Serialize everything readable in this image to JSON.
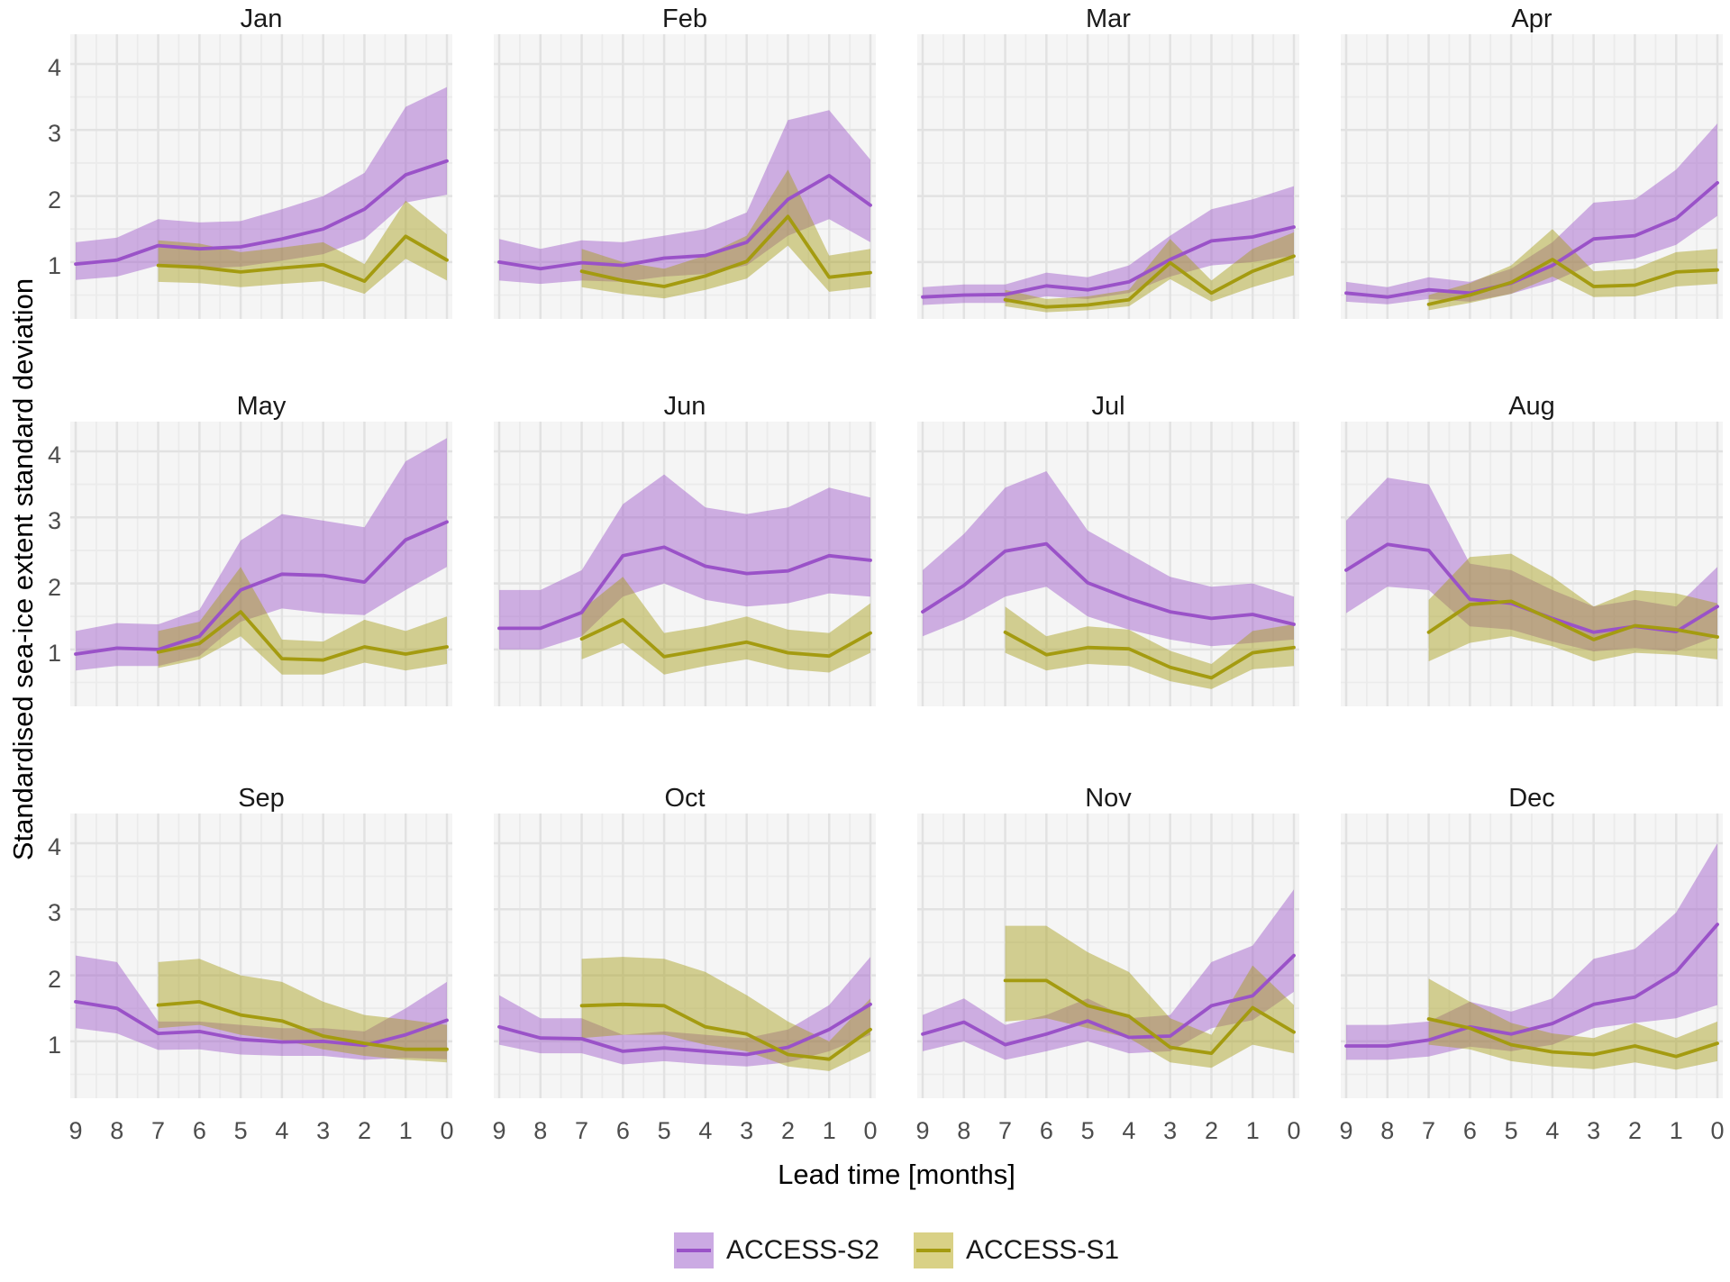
{
  "figure": {
    "y_axis_title": "Standardised sea-ice extent standard deviation",
    "x_axis_title": "Lead time [months]",
    "legend": [
      {
        "label": "ACCESS-S2",
        "series_key": "s2"
      },
      {
        "label": "ACCESS-S1",
        "series_key": "s1"
      }
    ]
  },
  "colors": {
    "s2_line": "#9a52c8",
    "s1_line": "#a49b10",
    "ribbon_opacity": 0.44,
    "panel_bg": "#f5f5f5",
    "grid_major": "#e2e2e2",
    "grid_minor": "#ebebeb",
    "tick_label": "#4d4d4d",
    "facet_title": "#1a1a1a",
    "legend_swatch_s2": "#cbaae3",
    "legend_swatch_s1": "#d9d186"
  },
  "chart_data": {
    "type": "line",
    "title": "",
    "xlabel": "Lead time [months]",
    "ylabel": "Standardised sea-ice extent standard deviation",
    "legend_position": "bottom",
    "grid": "major and minor, light gray on pale panel",
    "x_axis_reversed": true,
    "facets": [
      "Jan",
      "Feb",
      "Mar",
      "Apr",
      "May",
      "Jun",
      "Jul",
      "Aug",
      "Sep",
      "Oct",
      "Nov",
      "Dec"
    ],
    "xticks": [
      9,
      8,
      7,
      6,
      5,
      4,
      3,
      2,
      1,
      0
    ],
    "yticks": [
      1,
      2,
      3,
      4
    ],
    "ylim": [
      0.14,
      4.45
    ],
    "series": [
      {
        "key": "s2",
        "name": "ACCESS-S2",
        "leads": [
          9,
          8,
          7,
          6,
          5,
          4,
          3,
          2,
          1,
          0
        ],
        "style": "line with shaded ribbon"
      },
      {
        "key": "s1",
        "name": "ACCESS-S1",
        "leads": [
          7,
          6,
          5,
          4,
          3,
          2,
          1,
          0
        ],
        "style": "line with shaded ribbon"
      }
    ],
    "panels": {
      "Jan": {
        "s2": {
          "mean": [
            0.97,
            1.03,
            1.25,
            1.2,
            1.23,
            1.35,
            1.5,
            1.8,
            2.32,
            2.53
          ],
          "lo": [
            0.73,
            0.78,
            0.95,
            0.9,
            0.93,
            1.02,
            1.12,
            1.35,
            1.9,
            2.02
          ],
          "hi": [
            1.3,
            1.37,
            1.65,
            1.6,
            1.62,
            1.8,
            2.0,
            2.35,
            3.35,
            3.65
          ]
        },
        "s1": {
          "mean": [
            0.95,
            0.92,
            0.85,
            0.91,
            0.96,
            0.71,
            1.39,
            1.03
          ],
          "lo": [
            0.7,
            0.68,
            0.62,
            0.67,
            0.71,
            0.52,
            1.05,
            0.72
          ],
          "hi": [
            1.33,
            1.28,
            1.15,
            1.22,
            1.3,
            0.97,
            1.93,
            1.42
          ]
        }
      },
      "Feb": {
        "s2": {
          "mean": [
            1.0,
            0.9,
            0.99,
            0.95,
            1.06,
            1.1,
            1.3,
            1.95,
            2.31,
            1.86
          ],
          "lo": [
            0.72,
            0.67,
            0.72,
            0.7,
            0.78,
            0.82,
            0.95,
            1.4,
            1.65,
            1.3
          ],
          "hi": [
            1.35,
            1.2,
            1.33,
            1.3,
            1.4,
            1.5,
            1.75,
            3.15,
            3.3,
            2.55
          ]
        },
        "s1": {
          "mean": [
            0.86,
            0.72,
            0.63,
            0.79,
            1.01,
            1.69,
            0.77,
            0.84
          ],
          "lo": [
            0.62,
            0.52,
            0.45,
            0.58,
            0.75,
            1.25,
            0.55,
            0.62
          ],
          "hi": [
            1.2,
            1.0,
            0.9,
            1.1,
            1.4,
            2.4,
            1.1,
            1.2
          ]
        }
      },
      "Mar": {
        "s2": {
          "mean": [
            0.47,
            0.5,
            0.51,
            0.64,
            0.58,
            0.7,
            1.04,
            1.32,
            1.38,
            1.53
          ],
          "lo": [
            0.35,
            0.38,
            0.38,
            0.48,
            0.44,
            0.53,
            0.78,
            0.95,
            1.0,
            1.1
          ],
          "hi": [
            0.62,
            0.66,
            0.66,
            0.84,
            0.77,
            0.95,
            1.4,
            1.8,
            1.95,
            2.15
          ]
        },
        "s1": {
          "mean": [
            0.43,
            0.32,
            0.35,
            0.43,
            0.99,
            0.53,
            0.86,
            1.09
          ],
          "lo": [
            0.33,
            0.24,
            0.27,
            0.33,
            0.74,
            0.4,
            0.62,
            0.8
          ],
          "hi": [
            0.58,
            0.44,
            0.48,
            0.58,
            1.35,
            0.72,
            1.2,
            1.45
          ]
        }
      },
      "Apr": {
        "s2": {
          "mean": [
            0.53,
            0.47,
            0.58,
            0.53,
            0.68,
            0.95,
            1.35,
            1.4,
            1.66,
            2.2
          ],
          "lo": [
            0.4,
            0.36,
            0.44,
            0.4,
            0.52,
            0.7,
            0.98,
            1.05,
            1.26,
            1.7
          ],
          "hi": [
            0.7,
            0.62,
            0.77,
            0.7,
            0.9,
            1.3,
            1.9,
            1.95,
            2.4,
            3.1
          ]
        },
        "s1": {
          "mean": [
            0.36,
            0.5,
            0.69,
            1.04,
            0.63,
            0.65,
            0.85,
            0.88
          ],
          "lo": [
            0.27,
            0.38,
            0.52,
            0.78,
            0.47,
            0.48,
            0.63,
            0.67
          ],
          "hi": [
            0.5,
            0.68,
            0.95,
            1.5,
            0.86,
            0.9,
            1.15,
            1.2
          ]
        }
      },
      "May": {
        "s2": {
          "mean": [
            0.93,
            1.02,
            1.0,
            1.2,
            1.9,
            2.14,
            2.12,
            2.02,
            2.66,
            2.93
          ],
          "lo": [
            0.68,
            0.75,
            0.75,
            0.9,
            1.42,
            1.62,
            1.55,
            1.52,
            1.9,
            2.25
          ],
          "hi": [
            1.28,
            1.4,
            1.38,
            1.6,
            2.65,
            3.05,
            2.95,
            2.85,
            3.85,
            4.2
          ]
        },
        "s1": {
          "mean": [
            0.96,
            1.09,
            1.57,
            0.86,
            0.84,
            1.04,
            0.93,
            1.04
          ],
          "lo": [
            0.72,
            0.85,
            1.2,
            0.62,
            0.62,
            0.8,
            0.68,
            0.78
          ],
          "hi": [
            1.28,
            1.42,
            2.25,
            1.15,
            1.12,
            1.45,
            1.28,
            1.5
          ]
        }
      },
      "Jun": {
        "s2": {
          "mean": [
            1.32,
            1.32,
            1.56,
            2.42,
            2.55,
            2.26,
            2.15,
            2.19,
            2.42,
            2.35
          ],
          "lo": [
            1.0,
            1.0,
            1.2,
            1.8,
            2.0,
            1.75,
            1.65,
            1.7,
            1.85,
            1.8
          ],
          "hi": [
            1.9,
            1.9,
            2.2,
            3.2,
            3.65,
            3.15,
            3.05,
            3.15,
            3.45,
            3.3
          ]
        },
        "s1": {
          "mean": [
            1.16,
            1.45,
            0.89,
            1.0,
            1.11,
            0.95,
            0.9,
            1.25
          ],
          "lo": [
            0.85,
            1.1,
            0.62,
            0.75,
            0.85,
            0.7,
            0.65,
            0.95
          ],
          "hi": [
            1.6,
            2.1,
            1.25,
            1.35,
            1.5,
            1.3,
            1.25,
            1.7
          ]
        }
      },
      "Jul": {
        "s2": {
          "mean": [
            1.57,
            1.97,
            2.49,
            2.6,
            2.01,
            1.77,
            1.57,
            1.47,
            1.53,
            1.38
          ],
          "lo": [
            1.2,
            1.45,
            1.8,
            1.95,
            1.5,
            1.3,
            1.15,
            1.05,
            1.1,
            1.15
          ],
          "hi": [
            2.2,
            2.75,
            3.45,
            3.7,
            2.8,
            2.45,
            2.1,
            1.95,
            2.0,
            1.8
          ]
        },
        "s1": {
          "mean": [
            1.26,
            0.92,
            1.03,
            1.01,
            0.73,
            0.57,
            0.95,
            1.03
          ],
          "lo": [
            0.95,
            0.68,
            0.78,
            0.75,
            0.52,
            0.4,
            0.7,
            0.75
          ],
          "hi": [
            1.65,
            1.2,
            1.35,
            1.3,
            0.98,
            0.78,
            1.28,
            1.38
          ]
        }
      },
      "Aug": {
        "s2": {
          "mean": [
            2.2,
            2.59,
            2.5,
            1.76,
            1.7,
            1.47,
            1.26,
            1.35,
            1.27,
            1.65
          ],
          "lo": [
            1.55,
            1.95,
            1.9,
            1.35,
            1.3,
            1.12,
            0.97,
            1.02,
            0.97,
            1.2
          ],
          "hi": [
            2.95,
            3.6,
            3.5,
            2.3,
            2.2,
            1.9,
            1.65,
            1.75,
            1.65,
            2.25
          ]
        },
        "s1": {
          "mean": [
            1.26,
            1.68,
            1.73,
            1.45,
            1.15,
            1.36,
            1.3,
            1.19
          ],
          "lo": [
            0.82,
            1.1,
            1.2,
            1.05,
            0.82,
            0.95,
            0.92,
            0.85
          ],
          "hi": [
            1.75,
            2.4,
            2.45,
            2.1,
            1.65,
            1.9,
            1.85,
            1.7
          ]
        }
      },
      "Sep": {
        "s2": {
          "mean": [
            1.6,
            1.5,
            1.12,
            1.15,
            1.03,
            0.99,
            1.0,
            0.94,
            1.1,
            1.32
          ],
          "lo": [
            1.2,
            1.12,
            0.87,
            0.88,
            0.8,
            0.78,
            0.78,
            0.72,
            0.75,
            0.73
          ],
          "hi": [
            2.3,
            2.2,
            1.3,
            1.3,
            1.25,
            1.2,
            1.2,
            1.15,
            1.5,
            1.9
          ]
        },
        "s1": {
          "mean": [
            1.55,
            1.6,
            1.4,
            1.31,
            1.08,
            0.97,
            0.88,
            0.88
          ],
          "lo": [
            1.2,
            1.25,
            1.1,
            1.02,
            0.88,
            0.78,
            0.72,
            0.68
          ],
          "hi": [
            2.2,
            2.25,
            2.0,
            1.9,
            1.6,
            1.4,
            1.33,
            1.25
          ]
        }
      },
      "Oct": {
        "s2": {
          "mean": [
            1.22,
            1.05,
            1.04,
            0.85,
            0.9,
            0.85,
            0.8,
            0.91,
            1.18,
            1.56
          ],
          "lo": [
            0.95,
            0.82,
            0.82,
            0.65,
            0.7,
            0.65,
            0.62,
            0.68,
            0.85,
            1.1
          ],
          "hi": [
            1.7,
            1.35,
            1.35,
            1.1,
            1.15,
            1.1,
            1.05,
            1.18,
            1.55,
            2.28
          ]
        },
        "s1": {
          "mean": [
            1.54,
            1.56,
            1.54,
            1.22,
            1.11,
            0.8,
            0.73,
            1.18
          ],
          "lo": [
            1.05,
            1.1,
            1.1,
            0.95,
            0.85,
            0.62,
            0.55,
            0.85
          ],
          "hi": [
            2.25,
            2.28,
            2.25,
            2.05,
            1.7,
            1.3,
            1.0,
            1.65
          ]
        }
      },
      "Nov": {
        "s2": {
          "mean": [
            1.11,
            1.29,
            0.95,
            1.11,
            1.31,
            1.06,
            1.08,
            1.54,
            1.69,
            2.3
          ],
          "lo": [
            0.85,
            1.0,
            0.72,
            0.85,
            1.0,
            0.82,
            0.85,
            1.2,
            1.32,
            1.75
          ],
          "hi": [
            1.4,
            1.65,
            1.25,
            1.4,
            1.65,
            1.35,
            1.4,
            2.2,
            2.45,
            3.3
          ]
        },
        "s1": {
          "mean": [
            1.92,
            1.92,
            1.54,
            1.38,
            0.91,
            0.82,
            1.51,
            1.14
          ],
          "lo": [
            1.3,
            1.35,
            1.2,
            1.05,
            0.68,
            0.6,
            0.95,
            0.82
          ],
          "hi": [
            2.75,
            2.75,
            2.35,
            2.05,
            1.35,
            1.1,
            2.15,
            1.55
          ]
        }
      },
      "Dec": {
        "s2": {
          "mean": [
            0.93,
            0.93,
            1.02,
            1.22,
            1.11,
            1.27,
            1.56,
            1.67,
            2.05,
            2.77
          ],
          "lo": [
            0.72,
            0.72,
            0.77,
            0.92,
            0.85,
            0.95,
            1.2,
            1.28,
            1.35,
            1.55
          ],
          "hi": [
            1.25,
            1.25,
            1.3,
            1.6,
            1.45,
            1.65,
            2.25,
            2.4,
            2.95,
            4.0
          ]
        },
        "s1": {
          "mean": [
            1.34,
            1.2,
            0.95,
            0.84,
            0.8,
            0.93,
            0.77,
            0.97
          ],
          "lo": [
            0.95,
            0.88,
            0.7,
            0.62,
            0.58,
            0.68,
            0.57,
            0.7
          ],
          "hi": [
            1.95,
            1.6,
            1.28,
            1.12,
            1.05,
            1.28,
            1.05,
            1.3
          ]
        }
      }
    }
  }
}
